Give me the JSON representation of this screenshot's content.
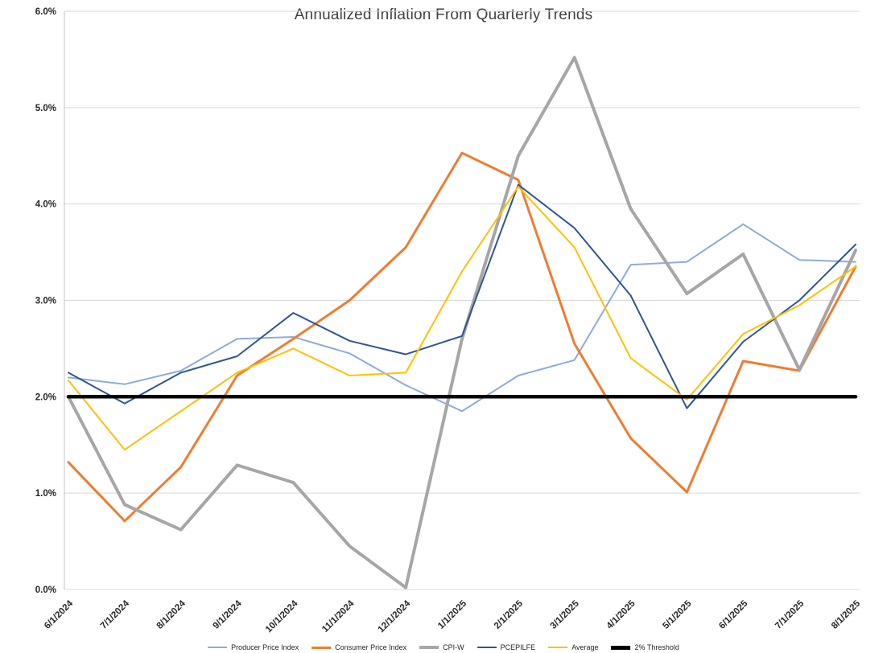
{
  "chart_data": {
    "type": "line",
    "title": "Annualized Inflation From Quarterly Trends",
    "xlabel": "",
    "ylabel": "",
    "ylim": [
      0,
      6
    ],
    "ytick_step": 1,
    "yticks": [
      "0.0%",
      "1.0%",
      "2.0%",
      "3.0%",
      "4.0%",
      "5.0%",
      "6.0%"
    ],
    "grid": true,
    "legend_position": "bottom",
    "categories": [
      "6/1/2024",
      "7/1/2024",
      "8/1/2024",
      "9/1/2024",
      "10/1/2024",
      "11/1/2024",
      "12/1/2024",
      "1/1/2025",
      "2/1/2025",
      "3/1/2025",
      "4/1/2025",
      "5/1/2025",
      "6/1/2025",
      "7/1/2025",
      "8/1/2025"
    ],
    "series": [
      {
        "name": "Producer Price Index",
        "color": "#8faadc",
        "width": 2,
        "values": [
          2.2,
          2.13,
          2.27,
          2.6,
          2.62,
          2.45,
          2.12,
          1.85,
          2.22,
          2.38,
          3.37,
          3.4,
          3.79,
          3.42,
          3.4
        ]
      },
      {
        "name": "Consumer Price Index",
        "color": "#ed7d31",
        "width": 3,
        "values": [
          1.32,
          0.71,
          1.27,
          2.22,
          2.6,
          3.0,
          3.55,
          4.53,
          4.25,
          2.55,
          1.57,
          1.01,
          2.37,
          2.27,
          3.35
        ]
      },
      {
        "name": "CPI-W",
        "color": "#a6a6a6",
        "width": 4,
        "values": [
          2.0,
          0.88,
          0.62,
          1.29,
          1.11,
          0.45,
          0.02,
          2.6,
          4.5,
          5.52,
          3.95,
          3.07,
          3.48,
          2.28,
          3.52
        ]
      },
      {
        "name": "PCEPILFE",
        "color": "#2e5596",
        "width": 2,
        "values": [
          2.25,
          1.93,
          2.25,
          2.42,
          2.87,
          2.58,
          2.44,
          2.63,
          4.2,
          3.75,
          3.05,
          1.88,
          2.57,
          3.0,
          3.58
        ]
      },
      {
        "name": "Average",
        "color": "#ffc000",
        "width": 2,
        "values": [
          2.17,
          1.45,
          1.85,
          2.25,
          2.5,
          2.22,
          2.25,
          3.3,
          4.18,
          3.55,
          2.4,
          1.97,
          2.65,
          2.95,
          3.35
        ]
      },
      {
        "name": "2% Threshold",
        "color": "#000000",
        "width": 4.5,
        "values": [
          2.0,
          2.0,
          2.0,
          2.0,
          2.0,
          2.0,
          2.0,
          2.0,
          2.0,
          2.0,
          2.0,
          2.0,
          2.0,
          2.0,
          2.0
        ]
      }
    ],
    "axis_colors": {
      "gridline": "#d9d9d9",
      "axis_line": "#c6c6c6",
      "tick_label": "#262626"
    }
  }
}
